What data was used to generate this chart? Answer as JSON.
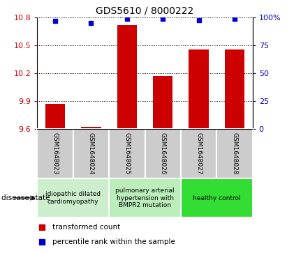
{
  "title": "GDS5610 / 8000222",
  "samples": [
    "GSM1648023",
    "GSM1648024",
    "GSM1648025",
    "GSM1648026",
    "GSM1648027",
    "GSM1648028"
  ],
  "transformed_count": [
    9.87,
    9.62,
    10.72,
    10.17,
    10.46,
    10.46
  ],
  "percentile_rank": [
    97,
    95,
    99,
    99,
    98,
    99
  ],
  "ylim_left": [
    9.6,
    10.8
  ],
  "yticks_left": [
    9.6,
    9.9,
    10.2,
    10.5,
    10.8
  ],
  "ylim_right": [
    0,
    100
  ],
  "yticks_right": [
    0,
    25,
    50,
    75,
    100
  ],
  "bar_color": "#cc0000",
  "dot_color": "#0000cc",
  "left_tick_color": "#cc0000",
  "right_tick_color": "#0000cc",
  "grid_color": "#000000",
  "disease_groups": [
    {
      "label": "idiopathic dilated\ncardiomyopathy",
      "indices": [
        0,
        1
      ],
      "color": "#cceecc"
    },
    {
      "label": "pulmonary arterial\nhypertension with\nBMPR2 mutation",
      "indices": [
        2,
        3
      ],
      "color": "#bbeebb"
    },
    {
      "label": "healthy control",
      "indices": [
        4,
        5
      ],
      "color": "#33dd33"
    }
  ],
  "sample_box_color": "#cccccc",
  "legend_bar_label": "transformed count",
  "legend_dot_label": "percentile rank within the sample",
  "disease_state_label": "disease state"
}
